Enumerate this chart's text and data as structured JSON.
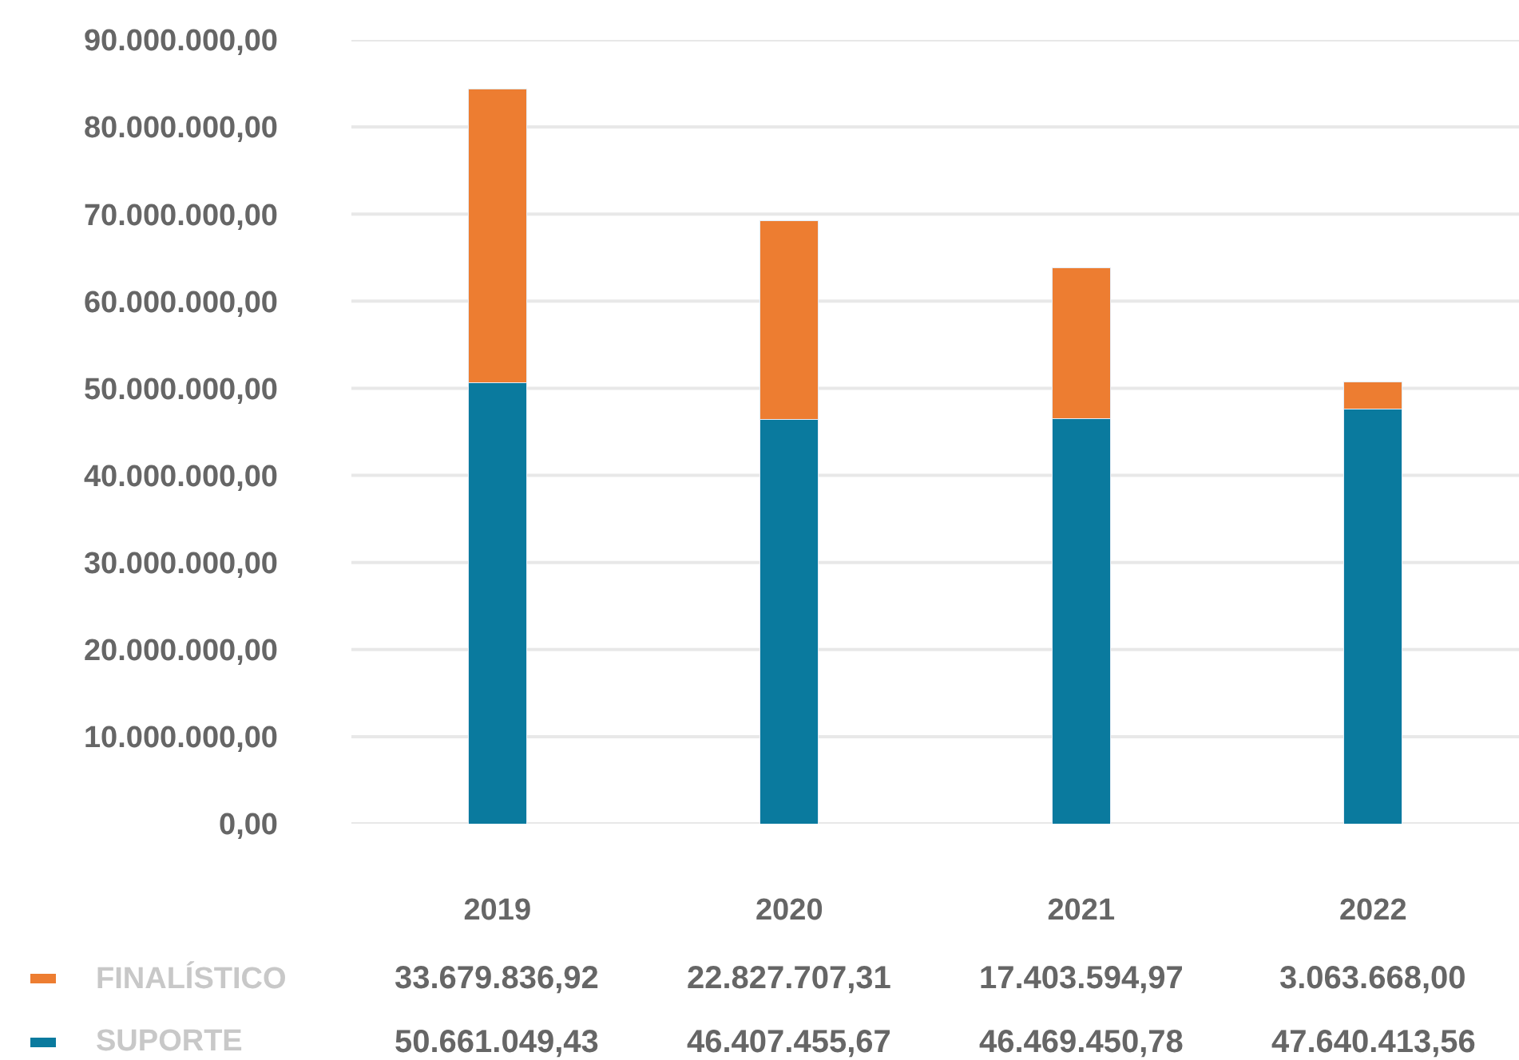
{
  "chart_data": {
    "type": "bar",
    "stacked": true,
    "categories": [
      "2019",
      "2020",
      "2021",
      "2022"
    ],
    "series": [
      {
        "name": "SUPORTE",
        "color": "#0a7a9e",
        "values": [
          50661049.43,
          46407455.67,
          46469450.78,
          47640413.56
        ],
        "value_labels": [
          "50.661.049,43",
          "46.407.455,67",
          "46.469.450,78",
          "47.640.413,56"
        ]
      },
      {
        "name": "FINALÍSTICO",
        "color": "#ed7d31",
        "values": [
          33679836.92,
          22827707.31,
          17403594.97,
          3063668.0
        ],
        "value_labels": [
          "33.679.836,92",
          "22.827.707,31",
          "17.403.594,97",
          "3.063.668,00"
        ]
      }
    ],
    "ylim": [
      0,
      90000000
    ],
    "yticks": [
      {
        "value": 0,
        "label": "0,00"
      },
      {
        "value": 10000000,
        "label": "10.000.000,00"
      },
      {
        "value": 20000000,
        "label": "20.000.000,00"
      },
      {
        "value": 30000000,
        "label": "30.000.000,00"
      },
      {
        "value": 40000000,
        "label": "40.000.000,00"
      },
      {
        "value": 50000000,
        "label": "50.000.000,00"
      },
      {
        "value": 60000000,
        "label": "60.000.000,00"
      },
      {
        "value": 70000000,
        "label": "70.000.000,00"
      },
      {
        "value": 80000000,
        "label": "80.000.000,00"
      },
      {
        "value": 90000000,
        "label": "90.000.000,00"
      }
    ],
    "grid": "y",
    "legend": "bottom left"
  }
}
